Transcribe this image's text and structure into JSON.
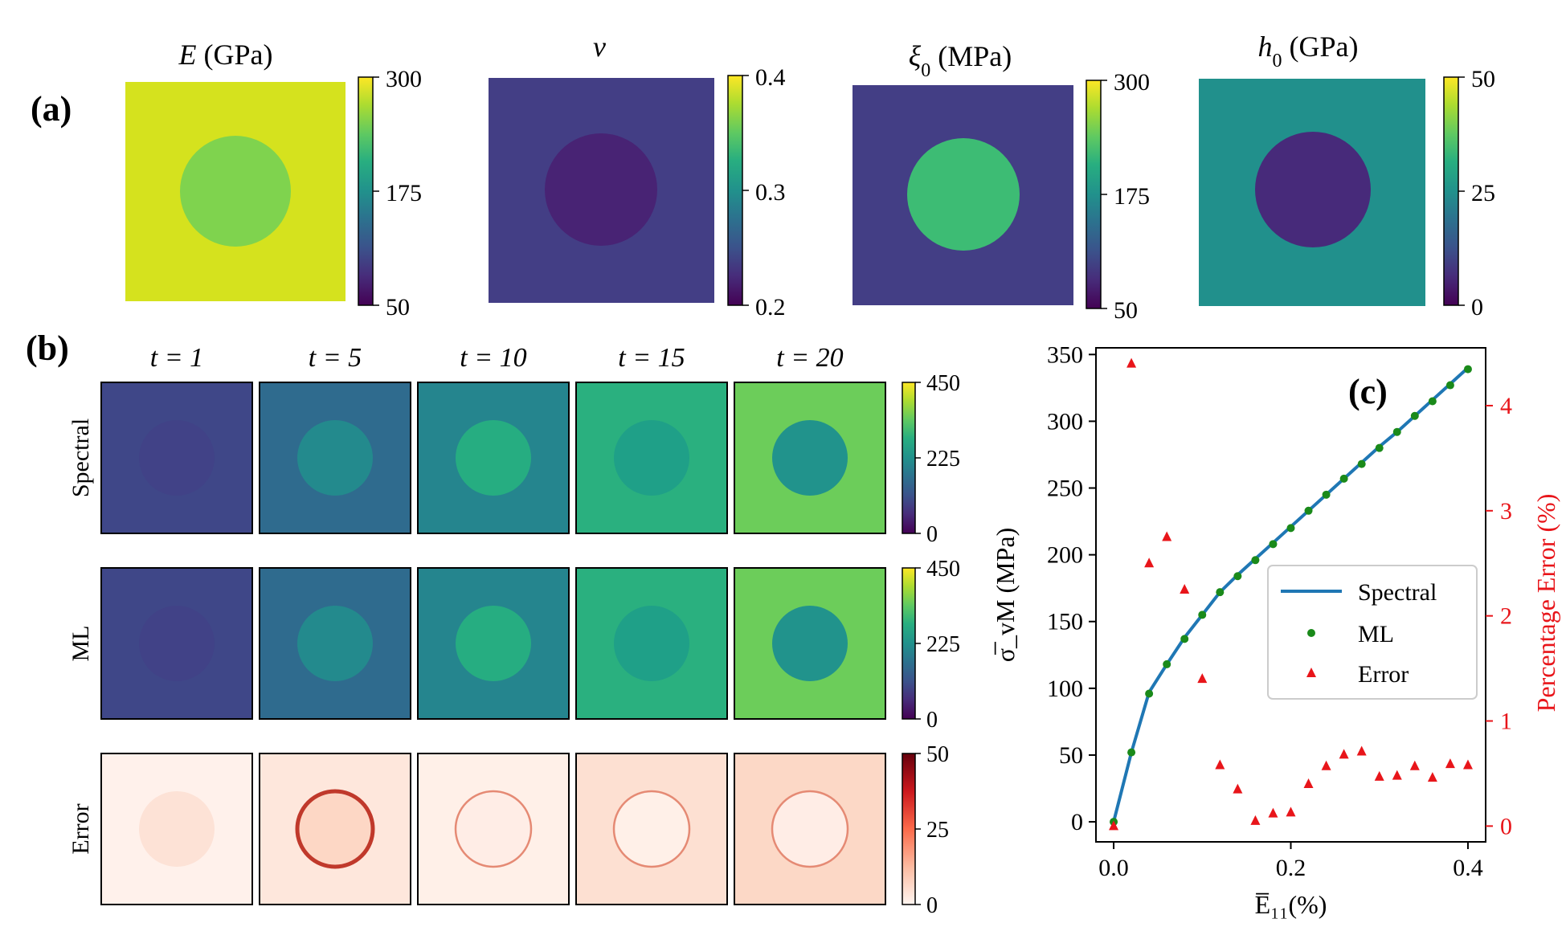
{
  "panel_labels": {
    "a": "(a)",
    "b": "(b)",
    "c": "(c)"
  },
  "panel_a": {
    "maps": [
      {
        "title_var": "E",
        "title_unit": " (GPa)",
        "cmap_ticks": [
          "300",
          "175",
          "50"
        ],
        "matrix_color": "#d5e21e",
        "inclusion_color": "#7fd34e"
      },
      {
        "title_var": "ν",
        "title_unit": "",
        "cmap_ticks": [
          "0.4",
          "0.3",
          "0.2"
        ],
        "matrix_color": "#433e85",
        "inclusion_color": "#482374"
      },
      {
        "title_var": "ξ",
        "title_sub": "0",
        "title_unit": " (MPa)",
        "cmap_ticks": [
          "300",
          "175",
          "50"
        ],
        "matrix_color": "#433e85",
        "inclusion_color": "#3dbc74"
      },
      {
        "title_var": "h",
        "title_sub": "0",
        "title_unit": " (GPa)",
        "cmap_ticks": [
          "50",
          "25",
          "0"
        ],
        "matrix_color": "#21908c",
        "inclusion_color": "#472a7a"
      }
    ]
  },
  "panel_b": {
    "time_labels": [
      "t = 1",
      "t = 5",
      "t = 10",
      "t = 15",
      "t = 20"
    ],
    "rows": [
      {
        "label": "Spectral",
        "cmap_ticks": [
          "450",
          "225",
          "0"
        ],
        "matrix_colors": [
          "#3f4788",
          "#2f6b8e",
          "#25858e",
          "#2ab07f",
          "#6ccd5a"
        ],
        "inclusion_colors": [
          "#414287",
          "#238a8d",
          "#26ad81",
          "#1fa088",
          "#21938c"
        ]
      },
      {
        "label": "ML",
        "cmap_ticks": [
          "450",
          "225",
          "0"
        ],
        "matrix_colors": [
          "#3f4788",
          "#2f6b8e",
          "#25858e",
          "#2ab07f",
          "#6ccd5a"
        ],
        "inclusion_colors": [
          "#414287",
          "#238a8d",
          "#26ad81",
          "#1fa088",
          "#21938c"
        ]
      },
      {
        "label": "Error",
        "cmap_ticks": [
          "50",
          "25",
          "0"
        ],
        "matrix_colors": [
          "#fff1eb",
          "#fee7dc",
          "#fff0e8",
          "#fde0d2",
          "#fcd8c6"
        ],
        "inclusion_colors": [
          "#fde2d6",
          "#fdd7c5",
          "#ffede6",
          "#fff0e8",
          "#ffede6"
        ]
      }
    ]
  },
  "chart_data": {
    "type": "line",
    "panel_label": "(c)",
    "xlabel": "E̅₁₁(%)",
    "ylabel": "σ̅_vM (MPa)",
    "y2label": "Percentage Error (%)",
    "xlim": [
      -0.02,
      0.42
    ],
    "ylim": [
      -15,
      355
    ],
    "y2lim": [
      -0.15,
      4.55
    ],
    "x_ticks": [
      "0.0",
      "0.2",
      "0.4"
    ],
    "y_ticks": [
      "0",
      "50",
      "100",
      "150",
      "200",
      "250",
      "300",
      "350"
    ],
    "y2_ticks": [
      "0",
      "1",
      "2",
      "3",
      "4"
    ],
    "x": [
      0.0,
      0.02,
      0.04,
      0.06,
      0.08,
      0.1,
      0.12,
      0.14,
      0.16,
      0.18,
      0.2,
      0.22,
      0.24,
      0.26,
      0.28,
      0.3,
      0.32,
      0.34,
      0.36,
      0.38,
      0.4
    ],
    "series": [
      {
        "name": "Spectral",
        "kind": "line",
        "color": "#1f77b4",
        "values": [
          0,
          52,
          97,
          118,
          138,
          155,
          172,
          185,
          197,
          209,
          221,
          233,
          245,
          257,
          269,
          281,
          292,
          304,
          316,
          328,
          340
        ]
      },
      {
        "name": "ML",
        "kind": "scatter",
        "marker": "circle",
        "color": "#1a8a1a",
        "values": [
          0,
          52,
          96,
          118,
          137,
          155,
          172,
          184,
          196,
          208,
          220,
          233,
          245,
          257,
          268,
          280,
          292,
          304,
          315,
          327,
          339
        ]
      },
      {
        "name": "Error",
        "kind": "scatter",
        "marker": "triangle",
        "axis": "right",
        "color": "#e8151a",
        "values": [
          0.0,
          4.4,
          2.5,
          2.75,
          2.25,
          1.4,
          0.58,
          0.35,
          0.05,
          0.12,
          0.13,
          0.4,
          0.57,
          0.68,
          0.71,
          0.47,
          0.48,
          0.57,
          0.46,
          0.59,
          0.58
        ]
      }
    ],
    "legend": {
      "position": "center-right",
      "labels": [
        "Spectral",
        "ML",
        "Error"
      ]
    }
  }
}
